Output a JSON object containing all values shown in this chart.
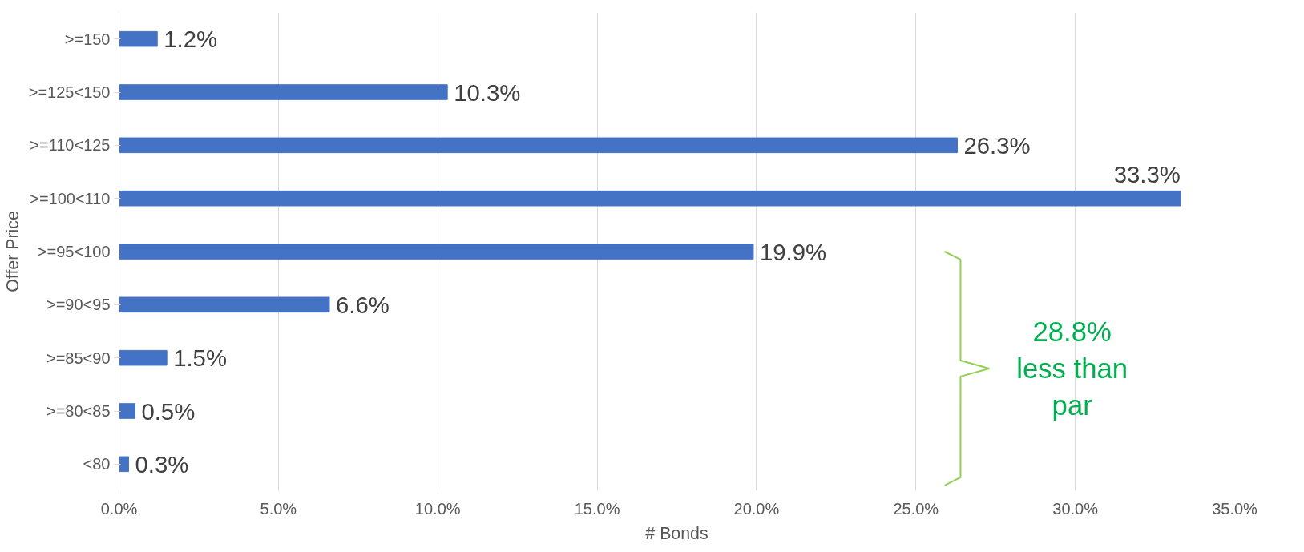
{
  "chart_data": {
    "type": "bar",
    "orientation": "horizontal",
    "xlabel": "# Bonds",
    "ylabel": "Offer Price",
    "categories": [
      ">=150",
      ">=125<150",
      ">=110<125",
      ">=100<110",
      ">=95<100",
      ">=90<95",
      ">=85<90",
      ">=80<85",
      "<80"
    ],
    "values": [
      1.2,
      10.3,
      26.3,
      33.3,
      19.9,
      6.6,
      1.5,
      0.5,
      0.3
    ],
    "value_labels": [
      "1.2%",
      "10.3%",
      "26.3%",
      "33.3%",
      "19.9%",
      "6.6%",
      "1.5%",
      "0.5%",
      "0.3%"
    ],
    "color": "#4472c4",
    "xlim": [
      0,
      35
    ],
    "xticks": [
      {
        "value": 0,
        "label": "0.0%"
      },
      {
        "value": 5,
        "label": "5.0%"
      },
      {
        "value": 10,
        "label": "10.0%"
      },
      {
        "value": 15,
        "label": "15.0%"
      },
      {
        "value": 20,
        "label": "20.0%"
      },
      {
        "value": 25,
        "label": "25.0%"
      },
      {
        "value": 30,
        "label": "30.0%"
      },
      {
        "value": 35,
        "label": "35.0%"
      }
    ],
    "grid": "x",
    "annotations": [
      "28.8% less than par"
    ]
  }
}
